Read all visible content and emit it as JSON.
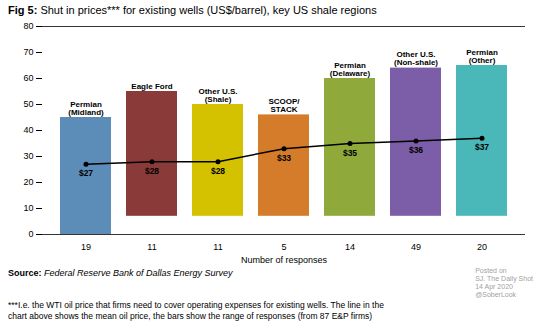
{
  "chart_data": {
    "type": "bar",
    "title": "Fig 5:",
    "subtitle": "Shut in prices*** for existing wells (US$/barrel), key US shale regions",
    "categories": [
      "Permian\n(Midland)",
      "Eagle Ford",
      "Other U.S.\n(Shale)",
      "SCOOP/\nSTACK",
      "Permian\n(Delaware)",
      "Other U.S.\n(Non-shale)",
      "Permian\n(Other)"
    ],
    "n_responses": [
      19,
      11,
      11,
      5,
      14,
      49,
      20
    ],
    "xlabel": "Number of responses",
    "series": [
      {
        "type": "bar",
        "values": [
          45,
          55,
          50,
          46,
          60,
          64,
          65
        ],
        "bottoms": [
          0,
          7,
          7,
          7,
          7,
          7,
          7
        ],
        "colors": [
          "#5b8db8",
          "#8b3a3a",
          "#d4c200",
          "#d47c2a",
          "#8faa3a",
          "#7b5ea7",
          "#4ab8b8"
        ]
      },
      {
        "type": "line",
        "values": [
          27,
          28,
          28,
          33,
          35,
          36,
          37
        ],
        "color": "#000000",
        "marker": "circle",
        "data_labels": true,
        "value_labels": [
          "$27",
          "$28",
          "$28",
          "$33",
          "$35",
          "$36",
          "$37"
        ]
      }
    ],
    "ylim": [
      0,
      80
    ],
    "yticks": [
      0,
      10,
      20,
      30,
      40,
      50,
      60,
      70,
      80
    ],
    "grid": false,
    "annotations": [
      "Posted on\nSJ. The Daily Shot\n14 Apr 2020\n@SoberLook"
    ],
    "source_label": "Source:",
    "source": "Federal Reserve Bank of Dallas Energy Survey",
    "footnote": "***I.e. the WTI oil price that firms need to cover operating expenses for existing wells. The line in the\nchart above shows the mean oil price, the bars show the range of responses (from 87 E&P firms)"
  }
}
